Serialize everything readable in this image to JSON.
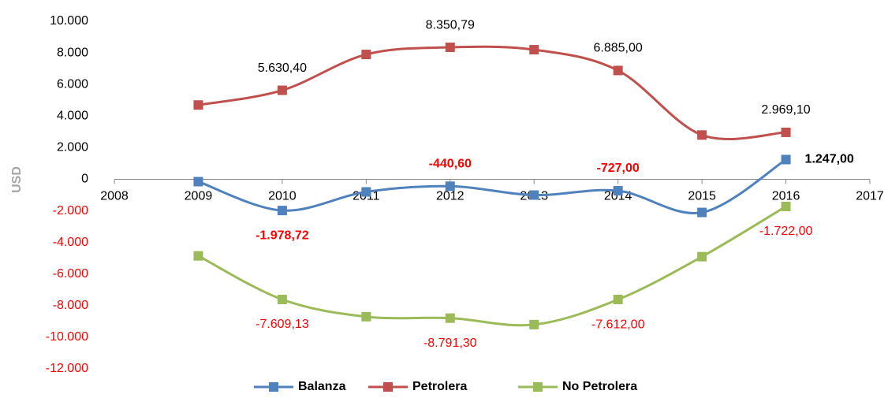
{
  "chart_data": {
    "type": "line",
    "y_label": "USD",
    "x": [
      2009,
      2010,
      2011,
      2012,
      2013,
      2014,
      2015,
      2016
    ],
    "xlim": [
      2008,
      2017
    ],
    "xticks": [
      2008,
      2009,
      2010,
      2011,
      2012,
      2013,
      2014,
      2015,
      2016,
      2017
    ],
    "ylim": [
      -12000,
      10000
    ],
    "yticks": [
      {
        "value": -12000,
        "label": "-12.000"
      },
      {
        "value": -10000,
        "label": "-10.000"
      },
      {
        "value": -8000,
        "label": "-8.000"
      },
      {
        "value": -6000,
        "label": "-6.000"
      },
      {
        "value": -4000,
        "label": "-4.000"
      },
      {
        "value": -2000,
        "label": "-2.000"
      },
      0,
      {
        "value": 2000,
        "label": "2.000"
      },
      {
        "value": 4000,
        "label": "4.000"
      },
      {
        "value": 6000,
        "label": "6.000"
      },
      {
        "value": 8000,
        "label": "8.000"
      },
      {
        "value": 10000,
        "label": "10.000"
      }
    ],
    "smooth": true,
    "series": [
      {
        "name": "Balanza",
        "color": "#4f81bd",
        "bold_labels": true,
        "values": [
          -150,
          -1978.72,
          -800,
          -440.6,
          -1000,
          -727,
          -2100,
          1247
        ],
        "value_labels": [
          null,
          "-1.978,72",
          null,
          "-440,60",
          null,
          "-727,00",
          null,
          "1.247,00"
        ]
      },
      {
        "name": "Petrolera",
        "color": "#c0504d",
        "values": [
          4700,
          5630.4,
          7900,
          8350.79,
          8200,
          6885,
          2800,
          2969.1
        ],
        "value_labels": [
          null,
          "5.630,40",
          null,
          "8.350,79",
          null,
          "6.885,00",
          null,
          "2.969,10"
        ]
      },
      {
        "name": "No Petrolera",
        "color": "#9bbb59",
        "values": [
          -4850,
          -7609.13,
          -8700,
          -8791.3,
          -9200,
          -7612,
          -4900,
          -1722
        ],
        "value_labels": [
          null,
          "-7.609,13",
          null,
          "-8.791,30",
          null,
          "-7.612,00",
          null,
          "-1.722,00"
        ]
      }
    ]
  }
}
